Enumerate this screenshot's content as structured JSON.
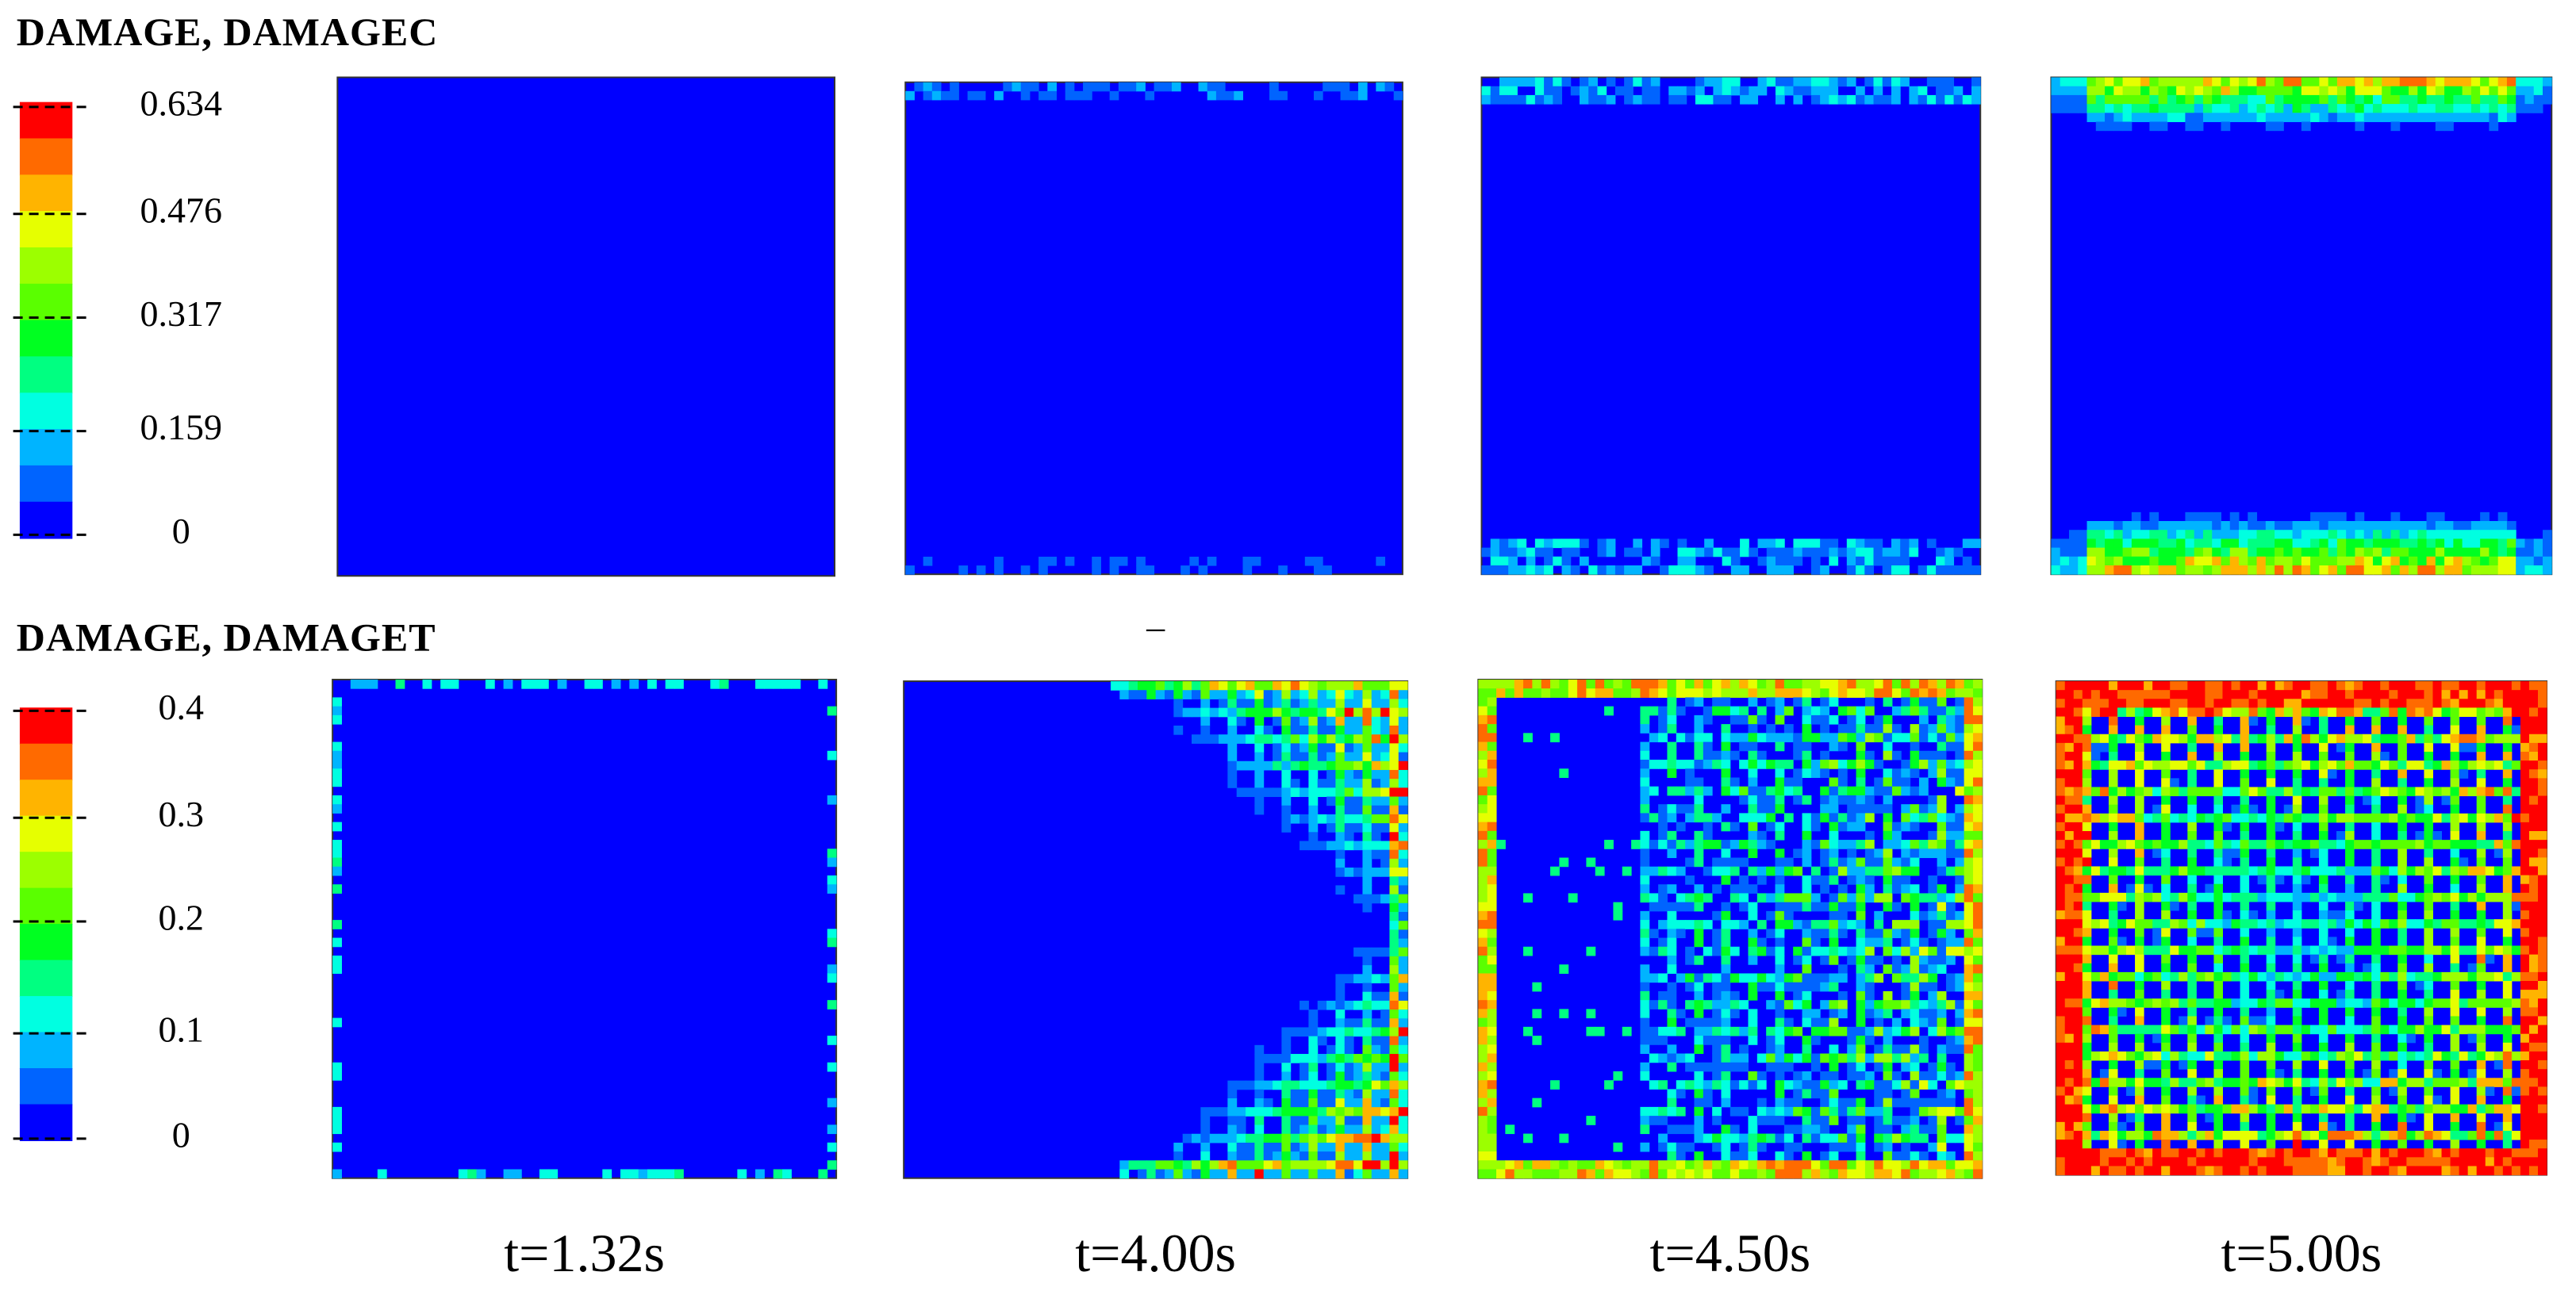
{
  "rows": [
    {
      "title": "DAMAGE, DAMAGEC",
      "legend_labels": [
        "0.634",
        "0.476",
        "0.317",
        "0.159",
        "0"
      ]
    },
    {
      "title": "DAMAGE, DAMAGET",
      "legend_labels": [
        "0.4",
        "0.3",
        "0.2",
        "0.1",
        "0"
      ]
    }
  ],
  "stray_mark": "–",
  "time_labels": [
    "t=1.32s",
    "t=4.00s",
    "t=4.50s",
    "t=5.00s"
  ]
}
